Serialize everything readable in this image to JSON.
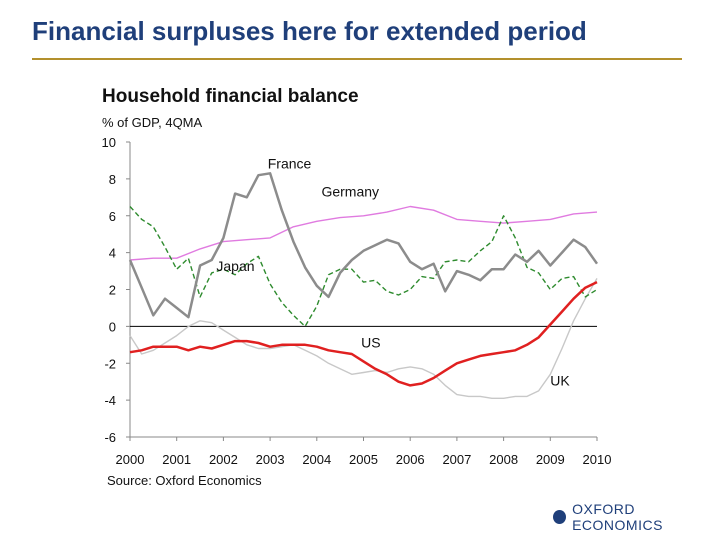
{
  "slide": {
    "title": "Financial surpluses here for extended period",
    "logo_text": "OXFORD ECONOMICS"
  },
  "colors": {
    "title": "#1f3f7a",
    "rule": "#b3902d",
    "france": "#8c8c8c",
    "germany": "#e07be0",
    "japan": "#2e8b2e",
    "us": "#e02020",
    "uk": "#c8c8c8",
    "zero": "#000000",
    "axis": "#888888"
  },
  "chart_data": {
    "type": "line",
    "title": "Household financial balance",
    "ylabel": "% of GDP, 4QMA",
    "source": "Source: Oxford Economics",
    "ylim": [
      -6,
      10
    ],
    "yticks": [
      10,
      8,
      6,
      4,
      2,
      0,
      -2,
      -4,
      -6
    ],
    "xlim": [
      2000,
      2010
    ],
    "xticks": [
      "2000",
      "2001",
      "2002",
      "2003",
      "2004",
      "2005",
      "2006",
      "2007",
      "2008",
      "2009",
      "2010"
    ],
    "series": [
      {
        "name": "UK",
        "label": "UK",
        "color_key": "uk",
        "dash": "",
        "x": [
          2000,
          2000.25,
          2000.5,
          2000.75,
          2001,
          2001.25,
          2001.5,
          2001.75,
          2002,
          2002.25,
          2002.5,
          2002.75,
          2003,
          2003.25,
          2003.5,
          2003.75,
          2004,
          2004.25,
          2004.5,
          2004.75,
          2005,
          2005.25,
          2005.5,
          2005.75,
          2006,
          2006.25,
          2006.5,
          2006.75,
          2007,
          2007.25,
          2007.5,
          2007.75,
          2008,
          2008.25,
          2008.5,
          2008.75,
          2009,
          2009.25,
          2009.5,
          2009.75,
          2010
        ],
        "values": [
          -0.5,
          -1.5,
          -1.3,
          -0.9,
          -0.5,
          0.0,
          0.3,
          0.2,
          -0.2,
          -0.6,
          -1.0,
          -1.2,
          -1.2,
          -1.1,
          -1.0,
          -1.3,
          -1.6,
          -2.0,
          -2.3,
          -2.6,
          -2.5,
          -2.4,
          -2.5,
          -2.3,
          -2.2,
          -2.3,
          -2.6,
          -3.2,
          -3.7,
          -3.8,
          -3.8,
          -3.9,
          -3.9,
          -3.8,
          -3.8,
          -3.5,
          -2.6,
          -1.2,
          0.3,
          1.5,
          2.6
        ]
      },
      {
        "name": "Germany",
        "label": "Germany",
        "color_key": "germany",
        "dash": "",
        "x": [
          2000,
          2000.5,
          2001,
          2001.5,
          2002,
          2002.5,
          2003,
          2003.5,
          2004,
          2004.5,
          2005,
          2005.5,
          2006,
          2006.5,
          2007,
          2007.5,
          2008,
          2008.5,
          2009,
          2009.5,
          2010
        ],
        "values": [
          3.6,
          3.7,
          3.7,
          4.2,
          4.6,
          4.7,
          4.8,
          5.4,
          5.7,
          5.9,
          6.0,
          6.2,
          6.5,
          6.3,
          5.8,
          5.7,
          5.6,
          5.7,
          5.8,
          6.1,
          6.2
        ]
      },
      {
        "name": "Japan",
        "label": "Japan",
        "color_key": "japan",
        "dash": "5,3",
        "x": [
          2000,
          2000.25,
          2000.5,
          2000.75,
          2001,
          2001.25,
          2001.5,
          2001.75,
          2002,
          2002.25,
          2002.5,
          2002.75,
          2003,
          2003.25,
          2003.5,
          2003.75,
          2004,
          2004.25,
          2004.5,
          2004.75,
          2005,
          2005.25,
          2005.5,
          2005.75,
          2006,
          2006.25,
          2006.5,
          2006.75,
          2007,
          2007.25,
          2007.5,
          2007.75,
          2008,
          2008.25,
          2008.5,
          2008.75,
          2009,
          2009.25,
          2009.5,
          2009.75,
          2010
        ],
        "values": [
          6.5,
          5.8,
          5.4,
          4.3,
          3.1,
          3.7,
          1.6,
          2.9,
          3.1,
          2.8,
          3.4,
          3.8,
          2.3,
          1.3,
          0.6,
          0.0,
          1.1,
          2.8,
          3.1,
          3.1,
          2.4,
          2.5,
          1.9,
          1.7,
          2.0,
          2.7,
          2.6,
          3.5,
          3.6,
          3.5,
          4.1,
          4.6,
          6.0,
          4.8,
          3.2,
          2.9,
          2.0,
          2.6,
          2.7,
          1.6,
          2.0
        ]
      },
      {
        "name": "France",
        "label": "France",
        "color_key": "france",
        "dash": "",
        "x": [
          2000,
          2000.25,
          2000.5,
          2000.75,
          2001,
          2001.25,
          2001.5,
          2001.75,
          2002,
          2002.25,
          2002.5,
          2002.75,
          2003,
          2003.25,
          2003.5,
          2003.75,
          2004,
          2004.25,
          2004.5,
          2004.75,
          2005,
          2005.25,
          2005.5,
          2005.75,
          2006,
          2006.25,
          2006.5,
          2006.75,
          2007,
          2007.25,
          2007.5,
          2007.75,
          2008,
          2008.25,
          2008.5,
          2008.75,
          2009,
          2009.25,
          2009.5,
          2009.75,
          2010
        ],
        "values": [
          3.6,
          2.1,
          0.6,
          1.5,
          1.0,
          0.5,
          3.3,
          3.6,
          4.8,
          7.2,
          7.0,
          8.2,
          8.3,
          6.3,
          4.6,
          3.2,
          2.2,
          1.6,
          2.9,
          3.6,
          4.1,
          4.4,
          4.7,
          4.5,
          3.5,
          3.1,
          3.4,
          1.9,
          3.0,
          2.8,
          2.5,
          3.1,
          3.1,
          3.9,
          3.5,
          4.1,
          3.3,
          4.0,
          4.7,
          4.3,
          3.4
        ]
      },
      {
        "name": "US",
        "label": "US",
        "color_key": "us",
        "dash": "",
        "x": [
          2000,
          2000.25,
          2000.5,
          2000.75,
          2001,
          2001.25,
          2001.5,
          2001.75,
          2002,
          2002.25,
          2002.5,
          2002.75,
          2003,
          2003.25,
          2003.5,
          2003.75,
          2004,
          2004.25,
          2004.5,
          2004.75,
          2005,
          2005.25,
          2005.5,
          2005.75,
          2006,
          2006.25,
          2006.5,
          2006.75,
          2007,
          2007.25,
          2007.5,
          2007.75,
          2008,
          2008.25,
          2008.5,
          2008.75,
          2009,
          2009.25,
          2009.5,
          2009.75,
          2010
        ],
        "values": [
          -1.4,
          -1.3,
          -1.1,
          -1.1,
          -1.1,
          -1.3,
          -1.1,
          -1.2,
          -1.0,
          -0.8,
          -0.8,
          -0.9,
          -1.1,
          -1.0,
          -1.0,
          -1.0,
          -1.1,
          -1.3,
          -1.4,
          -1.5,
          -1.9,
          -2.3,
          -2.6,
          -3.0,
          -3.2,
          -3.1,
          -2.8,
          -2.4,
          -2.0,
          -1.8,
          -1.6,
          -1.5,
          -1.4,
          -1.3,
          -1.0,
          -0.6,
          0.1,
          0.8,
          1.5,
          2.1,
          2.4
        ]
      }
    ],
    "labels": [
      {
        "text": "France",
        "x": 2002.95,
        "y": 8.55
      },
      {
        "text": "Germany",
        "x": 2004.1,
        "y": 7.05
      },
      {
        "text": "Japan",
        "x": 2001.85,
        "y": 3.0
      },
      {
        "text": "US",
        "x": 2004.95,
        "y": -1.15
      },
      {
        "text": "UK",
        "x": 2009.0,
        "y": -3.2
      }
    ]
  }
}
